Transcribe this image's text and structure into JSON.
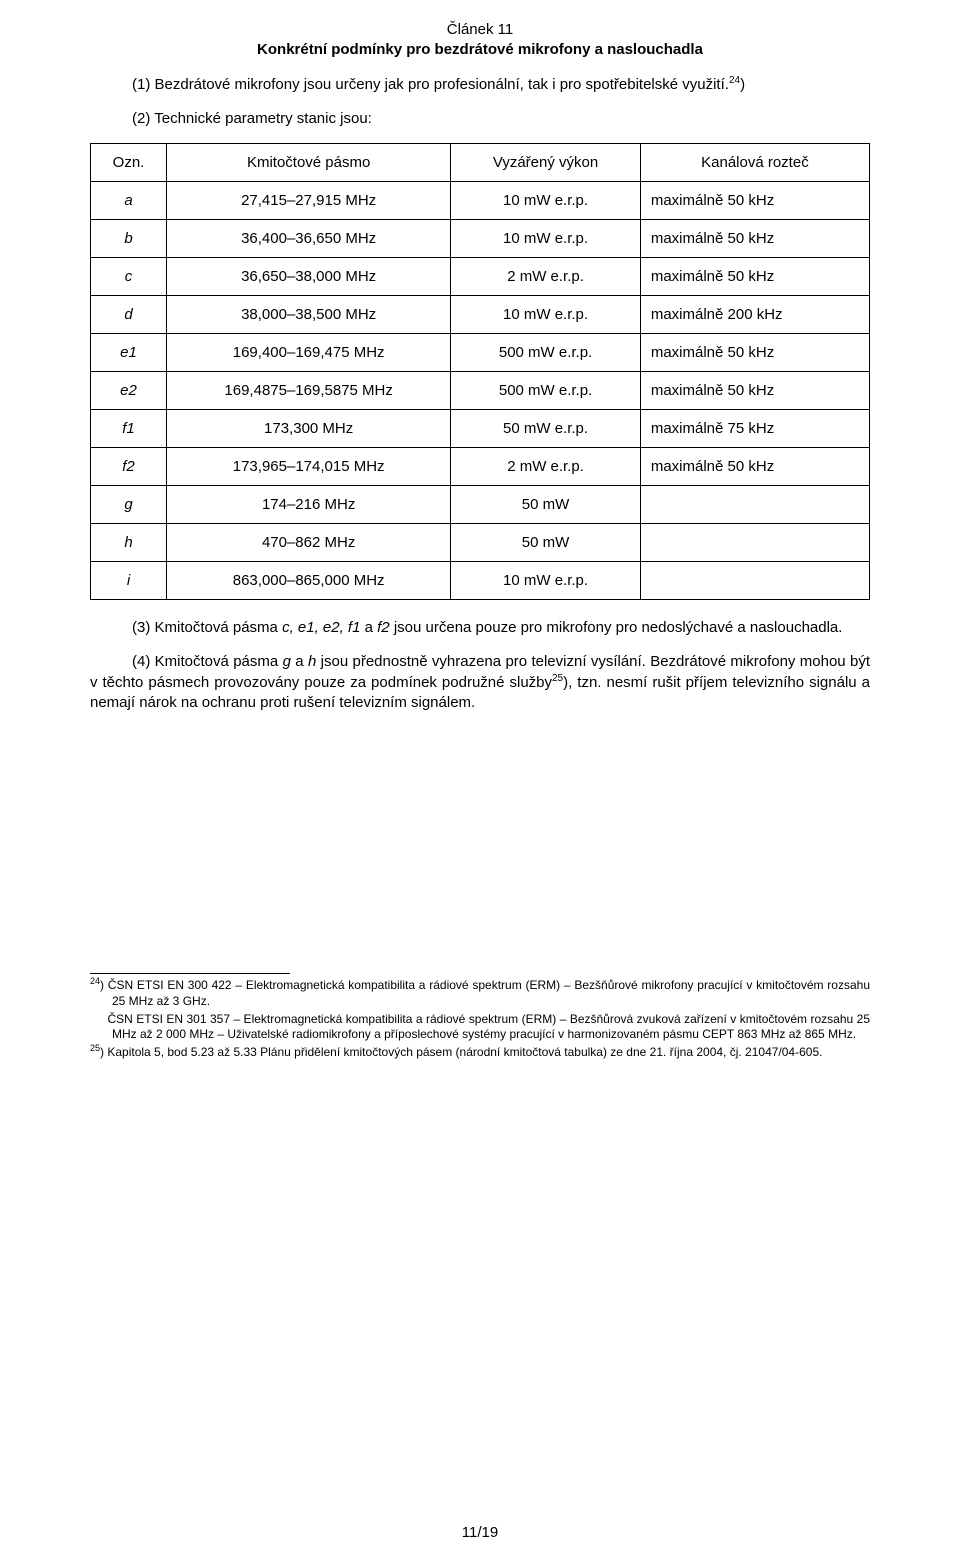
{
  "article": {
    "number": "Článek 11",
    "title": "Konkrétní podmínky pro bezdrátové mikrofony a naslouchadla"
  },
  "p1": {
    "lead": "(1) Bezdrátové mikrofony jsou určeny jak pro profesionální, tak i pro spotřebitelské využití.",
    "fn": "24",
    "tail": ")"
  },
  "p2": "(2) Technické parametry stanic jsou:",
  "table": {
    "head": {
      "ozn": "Ozn.",
      "band": "Kmitočtové pásmo",
      "power": "Vyzářený výkon",
      "chan": "Kanálová rozteč"
    },
    "rows": [
      {
        "ozn": "a",
        "band": "27,415–27,915 MHz",
        "power": "10 mW e.r.p.",
        "chan": "maximálně 50 kHz"
      },
      {
        "ozn": "b",
        "band": "36,400–36,650 MHz",
        "power": "10 mW e.r.p.",
        "chan": "maximálně 50 kHz"
      },
      {
        "ozn": "c",
        "band": "36,650–38,000 MHz",
        "power": "2 mW e.r.p.",
        "chan": "maximálně 50 kHz"
      },
      {
        "ozn": "d",
        "band": "38,000–38,500 MHz",
        "power": "10 mW e.r.p.",
        "chan": "maximálně 200 kHz"
      },
      {
        "ozn": "e1",
        "band": "169,400–169,475 MHz",
        "power": "500 mW e.r.p.",
        "chan": "maximálně 50 kHz"
      },
      {
        "ozn": "e2",
        "band": "169,4875–169,5875 MHz",
        "power": "500 mW e.r.p.",
        "chan": "maximálně 50 kHz"
      },
      {
        "ozn": "f1",
        "band": "173,300 MHz",
        "power": "50 mW e.r.p.",
        "chan": "maximálně 75 kHz"
      },
      {
        "ozn": "f2",
        "band": "173,965–174,015 MHz",
        "power": "2 mW e.r.p.",
        "chan": "maximálně 50 kHz"
      },
      {
        "ozn": "g",
        "band": "174–216 MHz",
        "power": "50 mW",
        "chan": ""
      },
      {
        "ozn": "h",
        "band": "470–862 MHz",
        "power": "50 mW",
        "chan": ""
      },
      {
        "ozn": "i",
        "band": "863,000–865,000 MHz",
        "power": "10 mW e.r.p.",
        "chan": ""
      }
    ]
  },
  "p3": {
    "pre": "(3) Kmitočtová pásma ",
    "i1": "c, e1, e2, f1",
    "mid1": " a ",
    "i2": "f2",
    "post": " jsou určena pouze pro mikrofony pro nedoslýchavé a naslouchadla."
  },
  "p4": {
    "pre": "(4) Kmitočtová pásma ",
    "i1": "g",
    "mid1": " a ",
    "i2": "h",
    "seg1": " jsou přednostně vyhrazena pro televizní vysílání. Bezdrátové mikrofony mohou být v těchto pásmech provozovány pouze za podmínek podružné služby",
    "fn": "25",
    "seg2": "), tzn. nesmí rušit příjem televizního signálu a nemají nárok na ochranu proti rušení televizním signálem."
  },
  "footnotes": {
    "f24a": {
      "mark": "24",
      "text": ") ČSN ETSI EN 300 422 – Elektromagnetická kompatibilita a rádiové spektrum (ERM) – Bezšňůrové mikrofony pracující v kmitočtovém rozsahu 25 MHz až 3 GHz."
    },
    "f24b": "ČSN ETSI EN 301 357 – Elektromagnetická kompatibilita a rádiové spektrum (ERM) – Bezšňůrová zvuková zařízení v kmitočtovém rozsahu 25 MHz až 2 000 MHz – Uživatelské radiomikrofony a příposlechové systémy pracující v harmonizovaném pásmu CEPT 863 MHz až 865 MHz.",
    "f25": {
      "mark": "25",
      "text": ") Kapitola 5, bod 5.23 až 5.33 Plánu přidělení kmitočtových pásem (národní kmitočtová tabulka) ze dne 21. října 2004, čj. 21047/04-605."
    }
  },
  "pageNumber": "11/19"
}
